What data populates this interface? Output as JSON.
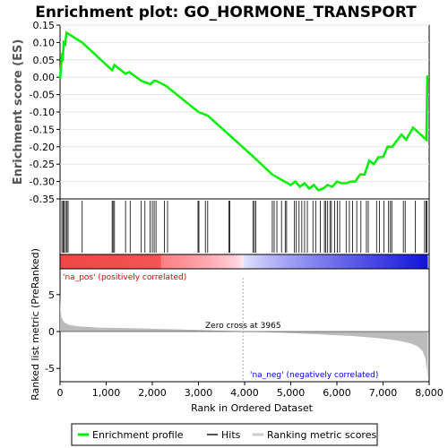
{
  "chart_data": {
    "type": "line",
    "title": "Enrichment plot: GO_HORMONE_TRANSPORT",
    "top_panel": {
      "ylabel": "Enrichment score (ES)",
      "ylim": [
        -0.35,
        0.15
      ],
      "yticks": [
        0.15,
        0.1,
        0.05,
        0.0,
        -0.05,
        -0.1,
        -0.15,
        -0.2,
        -0.25,
        -0.3,
        -0.35
      ],
      "ytick_labels": [
        "0.15",
        "0.10",
        "0.05",
        "0.00",
        "-0.05",
        "-0.10",
        "-0.15",
        "-0.20",
        "-0.25",
        "-0.30",
        "-0.35"
      ],
      "series": [
        {
          "name": "Enrichment profile",
          "color": "#00ee00",
          "x": [
            0,
            40,
            60,
            80,
            110,
            140,
            480,
            1130,
            1180,
            1420,
            1500,
            1760,
            1960,
            2040,
            2080,
            2300,
            3000,
            3200,
            3700,
            4200,
            4600,
            4800,
            5000,
            5100,
            5200,
            5300,
            5400,
            5500,
            5600,
            5700,
            5800,
            5900,
            6000,
            6100,
            6200,
            6300,
            6400,
            6500,
            6600,
            6700,
            6800,
            6900,
            7000,
            7100,
            7200,
            7400,
            7500,
            7650,
            7940,
            7950,
            7960
          ],
          "y": [
            -0.005,
            0.06,
            0.055,
            0.1,
            0.095,
            0.128,
            0.1,
            0.02,
            0.035,
            0.01,
            0.015,
            -0.01,
            -0.02,
            -0.01,
            -0.01,
            -0.025,
            -0.1,
            -0.11,
            -0.17,
            -0.23,
            -0.28,
            -0.295,
            -0.31,
            -0.3,
            -0.315,
            -0.305,
            -0.32,
            -0.31,
            -0.325,
            -0.32,
            -0.31,
            -0.315,
            -0.3,
            -0.305,
            -0.305,
            -0.3,
            -0.3,
            -0.28,
            -0.28,
            -0.24,
            -0.25,
            -0.23,
            -0.23,
            -0.2,
            -0.2,
            -0.165,
            -0.18,
            -0.145,
            -0.18,
            -0.09,
            0.005
          ]
        }
      ]
    },
    "hits_panel": {
      "label": "Hits",
      "positions": [
        40,
        65,
        90,
        120,
        150,
        175,
        480,
        1130,
        1150,
        1180,
        1420,
        1520,
        1760,
        1840,
        1950,
        2000,
        2040,
        2080,
        2260,
        2330,
        2990,
        3010,
        3150,
        3200,
        3660,
        3680,
        4180,
        4210,
        4240,
        4600,
        4640,
        4700,
        4800,
        4880,
        4910,
        5080,
        5120,
        5180,
        5240,
        5300,
        5360,
        5480,
        5540,
        5640,
        5730,
        5760,
        5800,
        5850,
        5880,
        5950,
        6010,
        6060,
        6200,
        6270,
        6340,
        6430,
        6520,
        6640,
        6680,
        6860,
        6920,
        7020,
        7120,
        7160,
        7190,
        7440,
        7480,
        7700,
        7900,
        7930,
        7950
      ]
    },
    "ranked_panel": {
      "ylabel": "Ranked list metric (PreRanked)",
      "ylim": [
        -6.8,
        8.5
      ],
      "yticks": [
        5,
        0,
        -5
      ],
      "ytick_labels": [
        "5",
        "0",
        "-5"
      ],
      "legend_label": "Ranking metric scores",
      "pos_label": "'na_pos' (positively correlated)",
      "neg_label": "'na_neg' (negatively correlated)",
      "zero_cross_label": "Zero cross at 3965",
      "zero_cross": 3965,
      "shape_x": [
        0,
        10,
        30,
        60,
        100,
        200,
        400,
        800,
        1500,
        2500,
        3500,
        3965,
        4500,
        5500,
        6300,
        6900,
        7300,
        7600,
        7750,
        7850,
        7910,
        7950,
        7970
      ],
      "shape_y": [
        5.0,
        3.0,
        2.0,
        1.5,
        1.2,
        0.9,
        0.7,
        0.55,
        0.45,
        0.3,
        0.12,
        0.0,
        -0.1,
        -0.35,
        -0.6,
        -0.9,
        -1.2,
        -1.6,
        -2.0,
        -2.6,
        -3.5,
        -5.0,
        -6.5
      ]
    },
    "xlabel": "Rank in Ordered Dataset",
    "xlim": [
      0,
      8000
    ],
    "xticks": [
      0,
      1000,
      2000,
      3000,
      4000,
      5000,
      6000,
      7000,
      8000
    ],
    "xtick_labels": [
      "0",
      "1,000",
      "2,000",
      "3,000",
      "4,000",
      "5,000",
      "6,000",
      "7,000",
      "8,000"
    ],
    "total_genes": 7960,
    "colors": {
      "profile": "#00ee00",
      "hits": "#000000",
      "metric_fill": "#bbbbbb",
      "positive": "#ff0000",
      "negative": "#0000ff",
      "neutral": "#ffffff"
    },
    "legend": [
      {
        "label": "Enrichment profile",
        "color": "#00ee00"
      },
      {
        "label": "Hits",
        "color": "#555555"
      },
      {
        "label": "Ranking metric scores",
        "color": "#cccccc"
      }
    ]
  }
}
